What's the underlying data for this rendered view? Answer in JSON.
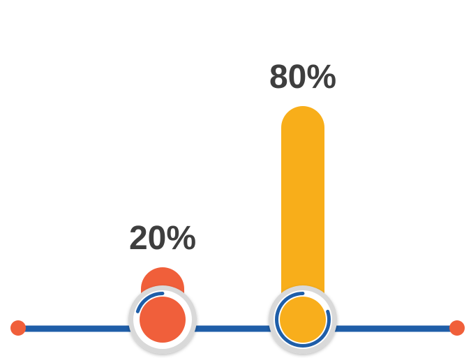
{
  "chart_data": {
    "type": "bar",
    "categories": [
      "",
      ""
    ],
    "values": [
      20,
      80
    ],
    "labels": [
      "20%",
      "80%"
    ],
    "ylim": [
      0,
      100
    ],
    "grid": false,
    "title": "",
    "xlabel": "",
    "ylabel": ""
  },
  "colors": {
    "bar_1": "#F05F3A",
    "bar_2": "#F8AE1A",
    "axis_line": "#1F5EA8",
    "endpoint_dots": "#F05F3A",
    "label_text": "#3E3E3E",
    "knob_outer": "#D9D9D9",
    "knob_ring": "#FFFFFF",
    "knob_inner_ring": "#1F5EA8"
  }
}
